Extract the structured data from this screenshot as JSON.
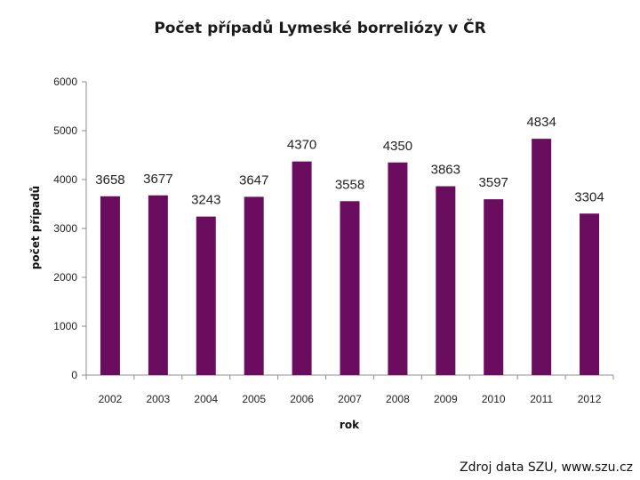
{
  "chart_data": {
    "type": "bar",
    "title": "Počet případů Lymeské borreliózy v ČR",
    "xlabel": "rok",
    "ylabel": "počet případů",
    "categories": [
      "2002",
      "2003",
      "2004",
      "2005",
      "2006",
      "2007",
      "2008",
      "2009",
      "2010",
      "2011",
      "2012"
    ],
    "values": [
      3658,
      3677,
      3243,
      3647,
      4370,
      3558,
      4350,
      3863,
      3597,
      4834,
      3304
    ],
    "ylim": [
      0,
      6000
    ],
    "yticks": [
      "0",
      "1000",
      "2000",
      "3000",
      "4000",
      "5000",
      "6000"
    ],
    "grid": false,
    "legend": "none",
    "bar_color": "#6b0d5e",
    "axis_color": "#8c8c8c"
  },
  "source_note": "Zdroj data SZU, www.szu.cz"
}
